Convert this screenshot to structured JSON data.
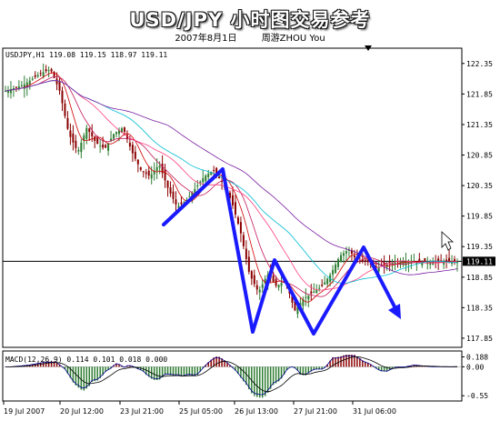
{
  "title": "USD/JPY  小时图交易参考",
  "date": "2007年8月1日",
  "author": "周游ZHOU You",
  "chart_data": [
    {
      "type": "candlestick",
      "symbol_header": "USDJPY,H1  119.08 119.15 118.97 119.11",
      "current_price": "119.11",
      "y_ticks": [
        "122.35",
        "121.85",
        "121.35",
        "120.85",
        "120.35",
        "119.85",
        "119.35",
        "118.85",
        "118.35",
        "117.85"
      ],
      "ylim": [
        117.7,
        122.6
      ],
      "x_ticks": [
        "19 Jul 2007",
        "20 Jul 12:00",
        "23 Jul 21:00",
        "25 Jul 05:00",
        "26 Jul 13:00",
        "27 Jul 21:00",
        "31 Jul 06:00"
      ],
      "series": [
        {
          "name": "close",
          "x": [
            0,
            4,
            8,
            12,
            16,
            20,
            24,
            28,
            32,
            36,
            40,
            44,
            48,
            52,
            56,
            60,
            64,
            68,
            72,
            76,
            80,
            84,
            88,
            92,
            96,
            100,
            104,
            108,
            112,
            116,
            120,
            124,
            128,
            132,
            136,
            140,
            144,
            148,
            152,
            156,
            160,
            164,
            168,
            172,
            176,
            180,
            184,
            188,
            192,
            196,
            200
          ],
          "values": [
            121.9,
            121.95,
            122.0,
            122.1,
            122.2,
            122.25,
            121.9,
            121.2,
            120.9,
            121.3,
            121.05,
            120.95,
            121.2,
            121.3,
            120.9,
            120.6,
            120.5,
            120.7,
            120.3,
            120.0,
            120.1,
            120.3,
            120.5,
            120.6,
            120.4,
            120.1,
            119.6,
            118.9,
            118.6,
            118.9,
            118.7,
            118.8,
            118.3,
            118.5,
            118.6,
            118.7,
            118.9,
            119.2,
            119.3,
            119.1,
            119.11,
            119.0,
            119.05,
            119.1,
            119.1,
            119.11,
            119.1,
            119.1,
            119.1,
            119.11,
            119.11
          ]
        }
      ]
    },
    {
      "type": "line",
      "indicator_header": "MACD(12,26,9) 0.114 0.101 0.018 0.000",
      "y_ticks": [
        "0.188",
        "0.00",
        "-0.55"
      ],
      "ylim": [
        -0.65,
        0.3
      ]
    }
  ],
  "annotation_color": "#1a1aff"
}
